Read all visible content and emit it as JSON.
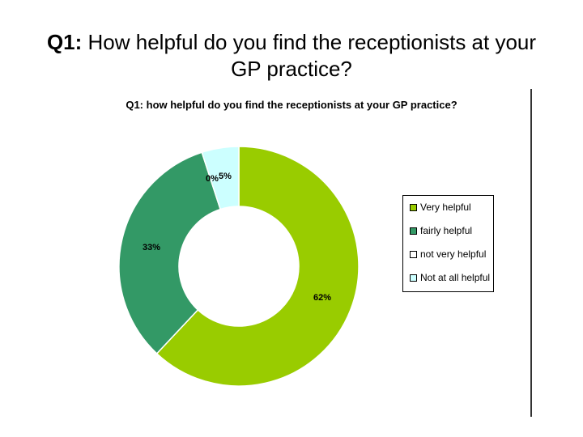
{
  "slide": {
    "title_prefix": "Q1:",
    "title_text": " How helpful do you find the receptionists at your GP practice?"
  },
  "chart_data": {
    "type": "pie",
    "style": "doughnut",
    "title": "Q1: how helpful do you find the receptionists at your GP practice?",
    "legend_position": "right",
    "categories": [
      "Very helpful",
      "fairly helpful",
      "not very helpful",
      "Not at all helpful"
    ],
    "values": [
      62,
      33,
      0,
      5
    ],
    "labels": [
      "62%",
      "33%",
      "0%",
      "5%"
    ],
    "colors": [
      "#99cc00",
      "#339966",
      "#ffffff",
      "#ccffff"
    ]
  }
}
